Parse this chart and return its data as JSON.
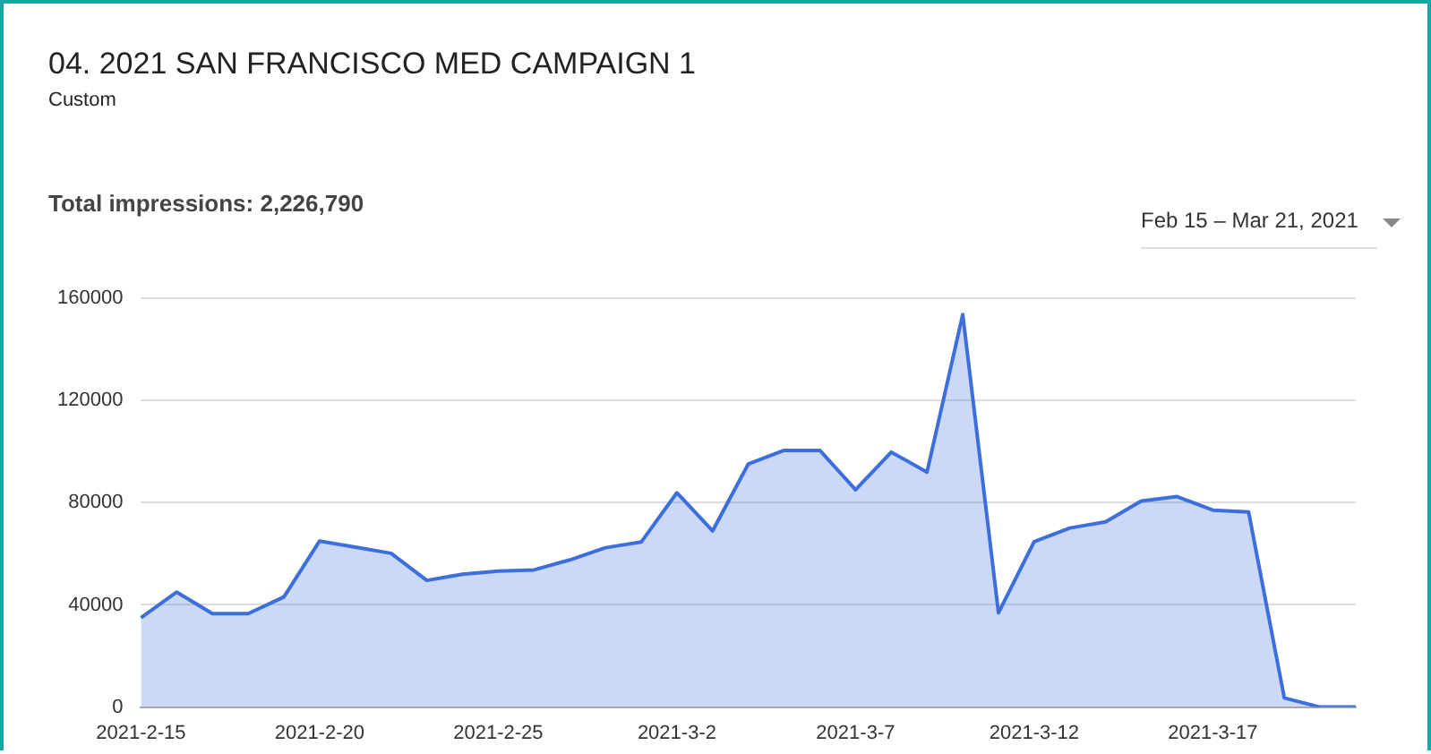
{
  "chart_data": {
    "type": "area",
    "title": "04. 2021 SAN FRANCISCO MED CAMPAIGN 1",
    "subtitle": "Custom",
    "annotations": [
      "Total impressions: 2,226,790",
      "Feb 15 – Mar 21, 2021"
    ],
    "categories": [
      "2021-2-15",
      null,
      null,
      null,
      null,
      "2021-2-20",
      null,
      null,
      null,
      null,
      "2021-2-25",
      null,
      null,
      null,
      null,
      "2021-3-2",
      null,
      null,
      null,
      null,
      "2021-3-7",
      null,
      null,
      null,
      null,
      "2021-3-12",
      null,
      null,
      null,
      null,
      "2021-3-17",
      null,
      null,
      null,
      null
    ],
    "series": [
      {
        "color": "#3d6fdc",
        "values": [
          35000,
          45000,
          36600,
          36600,
          43100,
          65000,
          62600,
          60200,
          49600,
          52000,
          53200,
          53700,
          57600,
          62400,
          64600,
          83900,
          69000,
          95200,
          100500,
          100500,
          85100,
          99800,
          92000,
          153700,
          36900,
          64800,
          70100,
          72500,
          80700,
          82400,
          77100,
          76400,
          3600,
          0,
          0
        ]
      }
    ],
    "ylim": [
      0,
      160000
    ],
    "yticks": [
      0,
      40000,
      80000,
      120000,
      160000
    ],
    "grid": "y",
    "legend": false
  }
}
